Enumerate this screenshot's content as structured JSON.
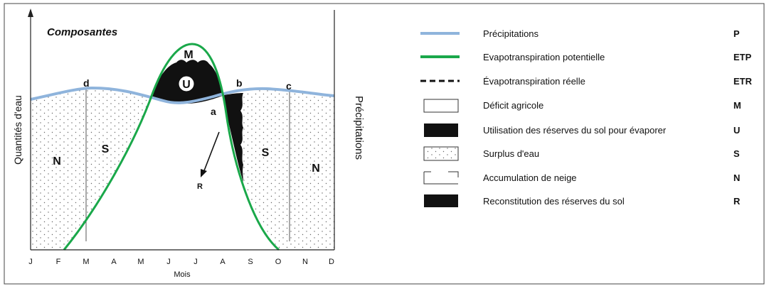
{
  "diagram": {
    "title": "Composantes",
    "y_label": "Quantités d'eau",
    "right_label": "Précipitations",
    "x_label": "Mois",
    "months": [
      "J",
      "F",
      "M",
      "A",
      "M",
      "J",
      "J",
      "A",
      "S",
      "O",
      "N",
      "D"
    ],
    "points": {
      "d": "d",
      "b": "b",
      "c": "c",
      "a": "a"
    },
    "zones": {
      "M": "M",
      "U": "U",
      "S_left": "S",
      "S_right": "S",
      "N_left": "N",
      "N_right": "N",
      "R": "R"
    }
  },
  "colors": {
    "precip": "#8fb4dc",
    "etp": "#1aa84a",
    "black": "#111111"
  },
  "legend": [
    {
      "key": "precip",
      "label": "Précipitations",
      "code": "P"
    },
    {
      "key": "etp",
      "label": "Evapotranspiration potentielle",
      "code": "ETP"
    },
    {
      "key": "etr",
      "label": "Évapotranspiration réelle",
      "code": "ETR"
    },
    {
      "key": "deficit",
      "label": "Déficit agricole",
      "code": "M"
    },
    {
      "key": "utilisation",
      "label": "Utilisation des réserves du sol pour évaporer",
      "code": "U"
    },
    {
      "key": "surplus",
      "label": "Surplus d'eau",
      "code": "S"
    },
    {
      "key": "neige",
      "label": "Accumulation de neige",
      "code": "N"
    },
    {
      "key": "reconstitution",
      "label": "Reconstitution des réserves du sol",
      "code": "R"
    }
  ]
}
